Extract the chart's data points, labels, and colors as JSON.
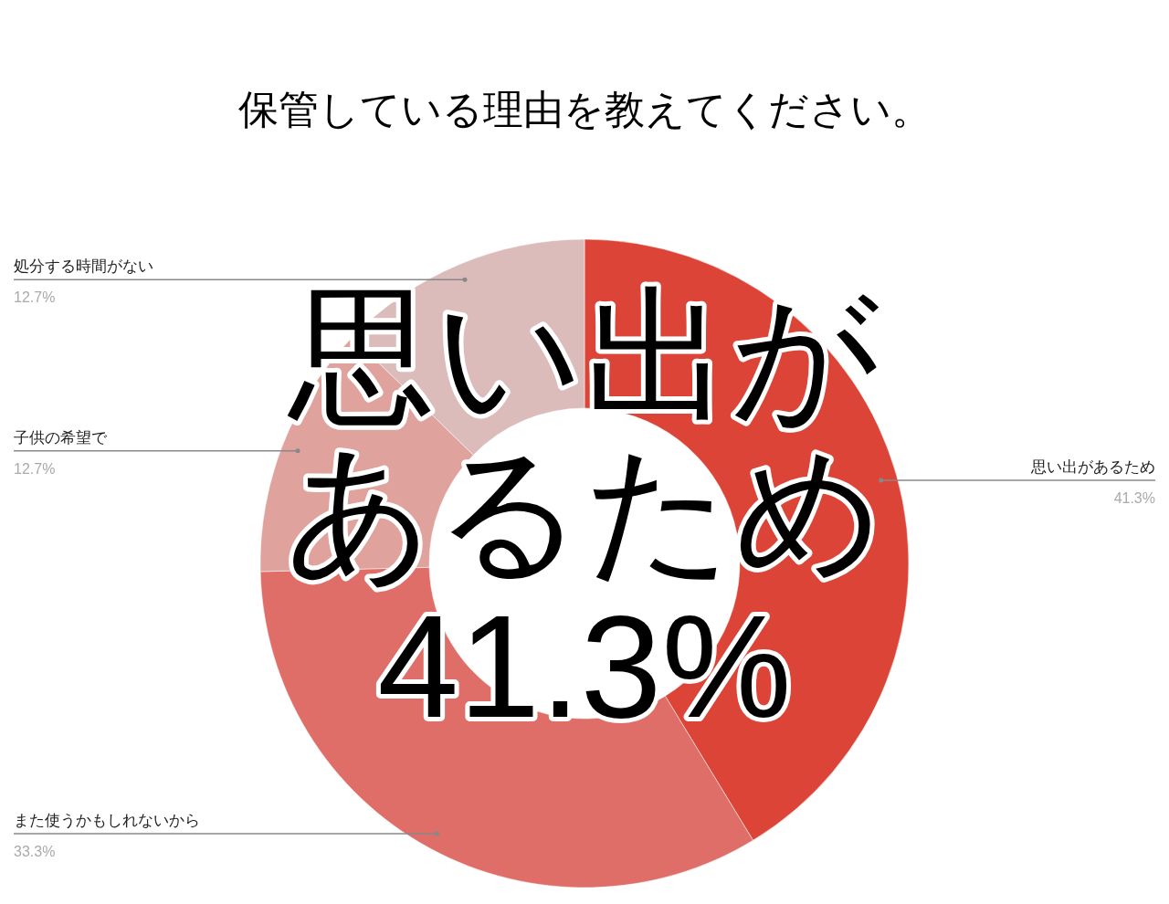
{
  "chart_data": {
    "type": "donut",
    "title": "保管している理由を教えてください。",
    "categories": [
      "思い出があるため",
      "また使うかもしれないから",
      "子供の希望で",
      "処分する時間がない"
    ],
    "values": [
      41.3,
      33.3,
      12.7,
      12.7
    ],
    "value_labels": [
      "41.3%",
      "33.3%",
      "12.7%",
      "12.7%"
    ],
    "colors": [
      "#db4437",
      "#e06e68",
      "#e0a29d",
      "#dbbcba"
    ],
    "annotations": [
      "思い出が",
      "あるため",
      "41.3%"
    ]
  }
}
